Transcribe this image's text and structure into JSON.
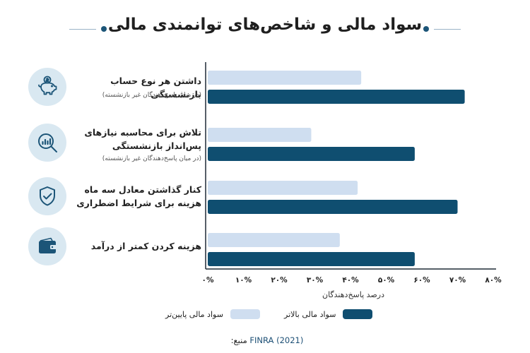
{
  "title": "سواد مالی و شاخص‌های توانمندی مالی",
  "colors": {
    "lower": "#cfdef0",
    "higher": "#0f4e70",
    "icon_bg": "#d9e8f1",
    "icon": "#1c5578"
  },
  "categories": [
    {
      "line1": "داشتن هر نوع حساب بازنشستگی",
      "line2": "",
      "note": "(در میان پاسخ‌دهندگان غیر بازنشسته)",
      "icon": "piggy-bank-icon"
    },
    {
      "line1": "تلاش برای محاسبه نیازهای",
      "line2": "پس‌انداز بازنشستگی",
      "note": "(در میان پاسخ‌دهندگان غیر بازنشسته)",
      "icon": "magnifier-chart-icon"
    },
    {
      "line1": "کنار گذاشتن معادل سه ماه",
      "line2": "هزینه برای شرایط اضطراری",
      "note": "",
      "icon": "shield-check-icon"
    },
    {
      "line1": "هزینه کردن کمتر از درآمد",
      "line2": "",
      "note": "",
      "icon": "wallet-icon"
    }
  ],
  "chart_data": {
    "type": "bar",
    "orientation": "horizontal",
    "categories": [
      "داشتن هر نوع حساب بازنشستگی",
      "تلاش برای محاسبه نیازهای پس‌انداز بازنشستگی",
      "کنار گذاشتن معادل سه ماه هزینه برای شرایط اضطراری",
      "هزینه کردن کمتر از درآمد"
    ],
    "series": [
      {
        "name": "سواد مالی پایین‌تر",
        "values": [
          43,
          29,
          42,
          37
        ]
      },
      {
        "name": "سواد مالی بالاتر",
        "values": [
          72,
          58,
          70,
          58
        ]
      }
    ],
    "xlabel": "درصد پاسخ‌دهندگان",
    "xlim": [
      0,
      80
    ],
    "xticks": [
      0,
      10,
      20,
      30,
      40,
      50,
      60,
      70,
      80
    ],
    "tick_labels": [
      "۰%",
      "۱۰%",
      "۲۰%",
      "۳۰%",
      "۴۰%",
      "۵۰%",
      "۶۰%",
      "۷۰%",
      "۸۰%"
    ],
    "legend_position": "bottom"
  },
  "legend": {
    "lower": "سواد مالی پایین‌تر",
    "higher": "سواد مالی بالاتر"
  },
  "source": {
    "label": "منبع:",
    "value": "FINRA (2021)"
  }
}
